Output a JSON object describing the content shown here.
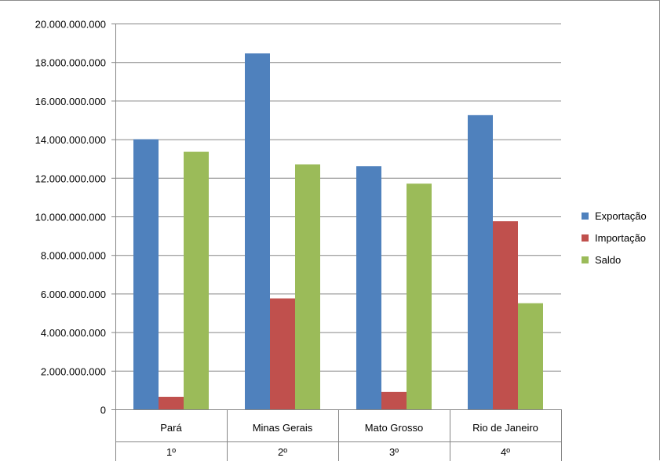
{
  "chart_data": {
    "type": "bar",
    "categories": [
      "Pará",
      "Minas Gerais",
      "Mato Grosso",
      "Rio de Janeiro"
    ],
    "category_ranks": [
      "1º",
      "2º",
      "3º",
      "4º"
    ],
    "series": [
      {
        "name": "Exportação",
        "color": "#4f81bd",
        "values": [
          14000000000,
          18450000000,
          12600000000,
          15250000000
        ]
      },
      {
        "name": "Importação",
        "color": "#c0504d",
        "values": [
          650000000,
          5750000000,
          900000000,
          9750000000
        ]
      },
      {
        "name": "Saldo",
        "color": "#9bbb59",
        "values": [
          13350000000,
          12700000000,
          11700000000,
          5500000000
        ]
      }
    ],
    "ylim": [
      0,
      20000000000
    ],
    "y_ticks": [
      0,
      2000000000,
      4000000000,
      6000000000,
      8000000000,
      10000000000,
      12000000000,
      14000000000,
      16000000000,
      18000000000,
      20000000000
    ],
    "y_tick_labels": [
      "0",
      "2.000.000.000",
      "4.000.000.000",
      "6.000.000.000",
      "8.000.000.000",
      "10.000.000.000",
      "12.000.000.000",
      "14.000.000.000",
      "16.000.000.000",
      "18.000.000.000",
      "20.000.000.000"
    ],
    "grid": true,
    "legend_position": "right"
  }
}
